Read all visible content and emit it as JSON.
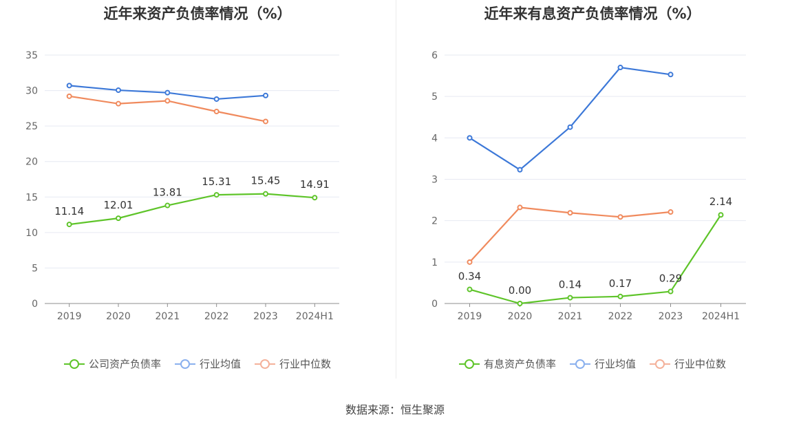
{
  "chart_data": [
    {
      "type": "line",
      "title": "近年来资产负债率情况（%）",
      "categories": [
        "2019",
        "2020",
        "2021",
        "2022",
        "2023",
        "2024H1"
      ],
      "ylim": [
        0,
        35
      ],
      "yticks": [
        "0",
        "5",
        "10",
        "15",
        "20",
        "25",
        "30",
        "35"
      ],
      "grid": true,
      "legend_position": "bottom",
      "series": [
        {
          "name": "公司资产负债率",
          "color": "#5ec429",
          "values": [
            11.14,
            12.01,
            13.81,
            15.31,
            15.45,
            14.91
          ],
          "labels": [
            "11.14",
            "12.01",
            "13.81",
            "15.31",
            "15.45",
            "14.91"
          ]
        },
        {
          "name": "行业均值",
          "color": "#3c78d8",
          "values": [
            30.7,
            30.05,
            29.7,
            28.8,
            29.3,
            null
          ]
        },
        {
          "name": "行业中位数",
          "color": "#f08a5d",
          "values": [
            29.2,
            28.15,
            28.55,
            27.05,
            25.65,
            null
          ]
        }
      ]
    },
    {
      "type": "line",
      "title": "近年来有息资产负债率情况（%）",
      "categories": [
        "2019",
        "2020",
        "2021",
        "2022",
        "2023",
        "2024H1"
      ],
      "ylim": [
        0,
        6
      ],
      "yticks": [
        "0",
        "1",
        "2",
        "3",
        "4",
        "5",
        "6"
      ],
      "grid": true,
      "legend_position": "bottom",
      "series": [
        {
          "name": "有息资产负债率",
          "color": "#5ec429",
          "values": [
            0.34,
            0.0,
            0.14,
            0.17,
            0.29,
            2.14
          ],
          "labels": [
            "0.34",
            "0.00",
            "0.14",
            "0.17",
            "0.29",
            "2.14"
          ]
        },
        {
          "name": "行业均值",
          "color": "#3c78d8",
          "values": [
            4.0,
            3.23,
            4.26,
            5.7,
            5.53,
            null
          ]
        },
        {
          "name": "行业中位数",
          "color": "#f08a5d",
          "values": [
            1.0,
            2.32,
            2.19,
            2.09,
            2.21,
            null
          ]
        }
      ]
    }
  ],
  "legend_colors": {
    "s0": "#5ec429",
    "s1": "#8ab0ee",
    "s2": "#f4b19a"
  },
  "source": "数据来源：恒生聚源"
}
